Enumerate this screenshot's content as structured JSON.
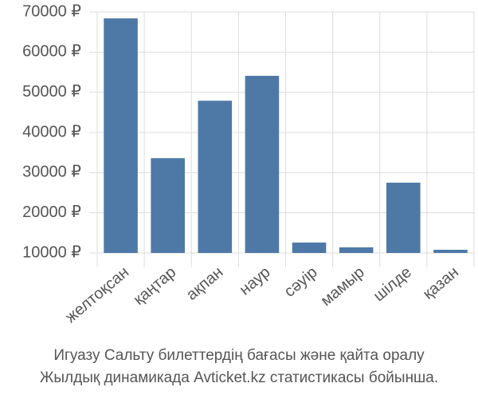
{
  "chart_data": {
    "type": "bar",
    "title": "Игуазу Сальту билеттердің бағасы және қайта оралу",
    "subtitle": "Жылдық динамикада Avticket.kz статистикасы бойынша.",
    "categories": [
      "желтоқсан",
      "қаңтар",
      "ақпан",
      "наур",
      "сәуір",
      "мамыр",
      "шілде",
      "қазан"
    ],
    "values": [
      68400,
      33600,
      47900,
      54100,
      12600,
      11400,
      27500,
      10800
    ],
    "color": "#4e79a7",
    "ylim": [
      10000,
      70000
    ],
    "yticks": [
      {
        "value": 10000,
        "label": "10000 ₽"
      },
      {
        "value": 20000,
        "label": "20000 ₽"
      },
      {
        "value": 30000,
        "label": "30000 ₽"
      },
      {
        "value": 40000,
        "label": "40000 ₽"
      },
      {
        "value": 50000,
        "label": "50000 ₽"
      },
      {
        "value": 60000,
        "label": "60000 ₽"
      },
      {
        "value": 70000,
        "label": "70000 ₽"
      }
    ],
    "grid": true
  }
}
